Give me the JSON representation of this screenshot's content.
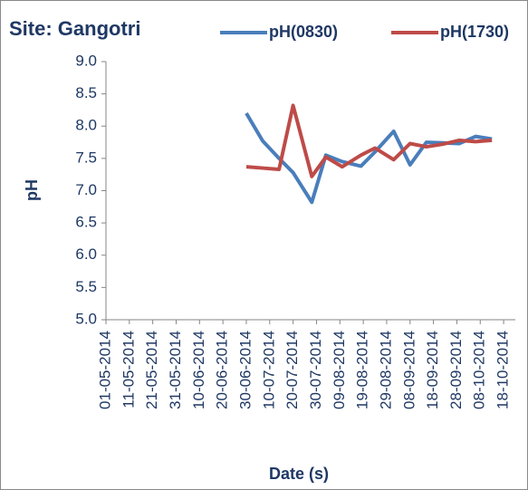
{
  "chart_data": {
    "type": "line",
    "title": "Site: Gangotri",
    "x_label": "Date (s)",
    "y_label": "pH",
    "x": [
      "30-06-2014",
      "07-07-2014",
      "14-07-2014",
      "20-07-2014",
      "28-07-2014",
      "03-08-2014",
      "10-08-2014",
      "18-08-2014",
      "24-08-2014",
      "01-09-2014",
      "08-09-2014",
      "15-09-2014",
      "22-09-2014",
      "29-09-2014",
      "06-10-2014",
      "13-10-2014"
    ],
    "series": [
      {
        "name": "pH(0830)",
        "color": "#4a7ebb",
        "values": [
          8.2,
          7.77,
          7.5,
          7.28,
          6.82,
          7.55,
          7.45,
          7.38,
          7.6,
          7.92,
          7.4,
          7.75,
          7.74,
          7.73,
          7.84,
          7.8
        ]
      },
      {
        "name": "pH(1730)",
        "color": "#be4b48",
        "values": [
          7.37,
          7.35,
          7.33,
          8.32,
          7.22,
          7.52,
          7.37,
          7.55,
          7.66,
          7.48,
          7.73,
          7.68,
          7.72,
          7.78,
          7.76,
          7.78
        ]
      }
    ],
    "xlim": [
      "01-05-2014",
      "23-10-2014"
    ],
    "xticks": [
      "01-05-2014",
      "11-05-2014",
      "21-05-2014",
      "31-05-2014",
      "10-06-2014",
      "20-06-2014",
      "30-06-2014",
      "10-07-2014",
      "20-07-2014",
      "30-07-2014",
      "09-08-2014",
      "19-08-2014",
      "29-08-2014",
      "08-09-2014",
      "18-09-2014",
      "28-09-2014",
      "08-10-2014",
      "18-10-2014"
    ],
    "ylim": [
      5.0,
      9.0
    ],
    "yticks": [
      {
        "value": 5.0,
        "label": "5.0"
      },
      {
        "value": 5.5,
        "label": "5.5"
      },
      {
        "value": 6.0,
        "label": "6.0"
      },
      {
        "value": 6.5,
        "label": "6.5"
      },
      {
        "value": 7.0,
        "label": "7.0"
      },
      {
        "value": 7.5,
        "label": "7.5"
      },
      {
        "value": 8.0,
        "label": "8.0"
      },
      {
        "value": 8.5,
        "label": "8.5"
      },
      {
        "value": 9.0,
        "label": "9.0"
      }
    ],
    "legend": "top-right"
  }
}
